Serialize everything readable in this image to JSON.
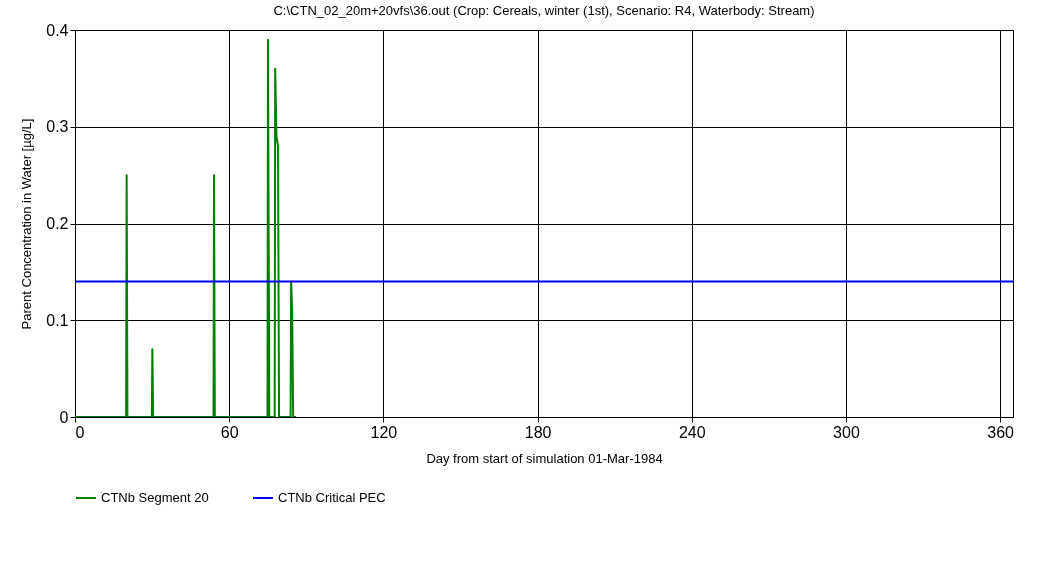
{
  "chart_data": {
    "type": "line",
    "title": "C:\\CTN_02_20m+20vfs\\36.out (Crop: Cereals, winter (1st), Scenario: R4, Waterbody: Stream)",
    "xlabel": "Day from start of simulation 01-Mar-1984",
    "ylabel": "Parent Concentration in Water [µg/L]",
    "xlim": [
      0,
      365
    ],
    "xticks": [
      0,
      60,
      120,
      180,
      240,
      300,
      360
    ],
    "ylim": [
      0,
      0.4
    ],
    "yticks": [
      0,
      0.1,
      0.2,
      0.3,
      0.4
    ],
    "grid": true,
    "legend": "bottom left",
    "line_style": "solid",
    "marker": "none",
    "series": [
      {
        "name": "CTNb Segment 20",
        "color": "#008000",
        "x": [
          0,
          19.9,
          20.1,
          20.4,
          29.9,
          30.1,
          30.4,
          53.9,
          54.1,
          54.4,
          74.9,
          75.1,
          75.6,
          77.7,
          77.9,
          78.4,
          79,
          79.4,
          83.9,
          84.1,
          84.5,
          84.9,
          86
        ],
        "values": [
          0,
          0,
          0.25,
          0,
          0,
          0.07,
          0,
          0,
          0.25,
          0,
          0,
          0.39,
          0,
          0,
          0.36,
          0.29,
          0.28,
          0,
          0,
          0.14,
          0.11,
          0,
          0
        ]
      },
      {
        "name": "CTNb Critical PEC",
        "color": "#0000ff",
        "x": [
          0,
          365
        ],
        "values": [
          0.14,
          0.14
        ]
      }
    ]
  }
}
